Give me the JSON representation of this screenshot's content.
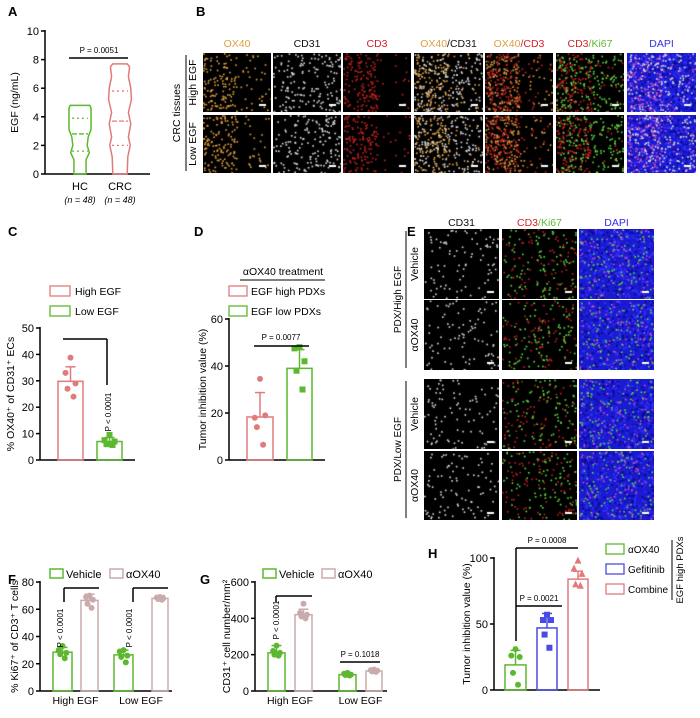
{
  "colors": {
    "red": "#e07b7b",
    "green": "#5cb82e",
    "pink": "#c9abab",
    "blue": "#4a4ae6",
    "orange": "#e0a040",
    "axis": "#000000"
  },
  "panels": {
    "A": "A",
    "B": "B",
    "C": "C",
    "D": "D",
    "E": "E",
    "F": "F",
    "G": "G",
    "H": "H"
  },
  "panelB": {
    "columns": [
      {
        "parts": [
          {
            "text": "OX40",
            "color": "#e0a040"
          }
        ]
      },
      {
        "parts": [
          {
            "text": "CD31",
            "color": "#111111"
          }
        ]
      },
      {
        "parts": [
          {
            "text": "CD3",
            "color": "#d8202a"
          }
        ]
      },
      {
        "parts": [
          {
            "text": "OX40",
            "color": "#e0a040"
          },
          {
            "text": "/CD31",
            "color": "#111111"
          }
        ]
      },
      {
        "parts": [
          {
            "text": "OX40",
            "color": "#e0a040"
          },
          {
            "text": "/CD3",
            "color": "#d8202a"
          }
        ]
      },
      {
        "parts": [
          {
            "text": "CD3",
            "color": "#d8202a"
          },
          {
            "text": "/Ki67",
            "color": "#5cb82e"
          }
        ]
      },
      {
        "parts": [
          {
            "text": "DAPI",
            "color": "#3030e0"
          }
        ]
      }
    ],
    "group_label": "CRC tissues",
    "rows": [
      "High EGF",
      "Low EGF"
    ]
  },
  "panelE": {
    "columns": [
      {
        "parts": [
          {
            "text": "CD31",
            "color": "#111111"
          }
        ]
      },
      {
        "parts": [
          {
            "text": "CD3",
            "color": "#d8202a"
          },
          {
            "text": "/Ki67",
            "color": "#5cb82e"
          }
        ]
      },
      {
        "parts": [
          {
            "text": "DAPI",
            "color": "#3030e0"
          }
        ]
      }
    ],
    "groups": [
      {
        "label": "PDX/High EGF",
        "rows": [
          "Vehicle",
          "αOX40"
        ]
      },
      {
        "label": "PDX/Low EGF",
        "rows": [
          "Vehicle",
          "αOX40"
        ]
      }
    ]
  },
  "chart_data": [
    {
      "panel": "A",
      "type": "violin",
      "ylabel": "EGF (ng/mL)",
      "ylim": [
        0,
        10
      ],
      "yticks": [
        0,
        2,
        4,
        6,
        8,
        10
      ],
      "categories": [
        "HC",
        "CRC"
      ],
      "n_labels": [
        "(n = 48)",
        "(n = 48)"
      ],
      "series": [
        {
          "category": "HC",
          "color": "#5cb82e",
          "min": 0,
          "max": 4.8,
          "q1": 1.6,
          "median": 2.8,
          "q3": 3.9
        },
        {
          "category": "CRC",
          "color": "#e07b7b",
          "min": 0,
          "max": 7.7,
          "q1": 2.0,
          "median": 3.7,
          "q3": 5.8
        }
      ],
      "annotations": [
        {
          "text": "P = 0.0051",
          "between": [
            "HC",
            "CRC"
          ]
        }
      ]
    },
    {
      "panel": "C",
      "type": "bar",
      "ylabel": "% OX40⁺ of CD31⁺ ECs",
      "ylim": [
        0,
        50
      ],
      "yticks": [
        0,
        10,
        20,
        30,
        40,
        50
      ],
      "legend": [
        {
          "name": "High EGF",
          "color": "#e07b7b"
        },
        {
          "name": "Low EGF",
          "color": "#5cb82e"
        }
      ],
      "series": [
        {
          "name": "High EGF",
          "color": "#e07b7b",
          "value": 29.8,
          "error": 35.3,
          "points": [
            38.8,
            33,
            29,
            27,
            24
          ],
          "marker": "circle"
        },
        {
          "name": "Low EGF",
          "color": "#5cb82e",
          "value": 7,
          "error": 8.5,
          "points": [
            9.5,
            7.5,
            7,
            6,
            5.7
          ],
          "marker": "square"
        }
      ],
      "annotations": [
        {
          "text": "P < 0.0001"
        }
      ]
    },
    {
      "panel": "D",
      "type": "bar",
      "ylabel": "Tumor inhibition value (%)",
      "ylim": [
        0,
        60
      ],
      "yticks": [
        0,
        20,
        40,
        60
      ],
      "legend_title": "αOX40 treatment",
      "legend": [
        {
          "name": "EGF high PDXs",
          "color": "#e07b7b"
        },
        {
          "name": "EGF low PDXs",
          "color": "#5cb82e"
        }
      ],
      "series": [
        {
          "name": "EGF high PDXs",
          "color": "#e07b7b",
          "value": 18.3,
          "error": 28.7,
          "points": [
            34.5,
            18,
            19,
            14,
            6.5
          ],
          "marker": "circle"
        },
        {
          "name": "EGF low PDXs",
          "color": "#5cb82e",
          "value": 39,
          "error": 47,
          "points": [
            48,
            47.5,
            42,
            38,
            30
          ],
          "marker": "square"
        }
      ],
      "annotations": [
        {
          "text": "P = 0.0077"
        }
      ]
    },
    {
      "panel": "F",
      "type": "grouped-bar",
      "ylabel": "% Ki67⁺ of CD3⁺ T cells",
      "ylim": [
        0,
        80
      ],
      "yticks": [
        0,
        20,
        40,
        60,
        80
      ],
      "categories": [
        "High EGF",
        "Low EGF"
      ],
      "legend": [
        {
          "name": "Vehicle",
          "color": "#5cb82e"
        },
        {
          "name": "αOX40",
          "color": "#c9abab"
        }
      ],
      "series": [
        {
          "name": "Vehicle",
          "color": "#5cb82e",
          "values": [
            28.5,
            26.5
          ],
          "errors": [
            32,
            30
          ],
          "points": [
            [
              33,
              30,
              28,
              27,
              24
            ],
            [
              30,
              29,
              26,
              25,
              21
            ]
          ]
        },
        {
          "name": "αOX40",
          "color": "#c9abab",
          "values": [
            66.5,
            68
          ],
          "errors": [
            71,
            70
          ],
          "points": [
            [
              70,
              69,
              67,
              64,
              61
            ],
            [
              69,
              68.5,
              68,
              67.5,
              67
            ]
          ]
        }
      ],
      "annotations": [
        {
          "text": "P < 0.0001",
          "category": "High EGF"
        },
        {
          "text": "P < 0.0001",
          "category": "Low EGF"
        }
      ]
    },
    {
      "panel": "G",
      "type": "grouped-bar",
      "ylabel": "CD31⁺ cell number/mm²",
      "ylim": [
        0,
        600
      ],
      "yticks": [
        0,
        200,
        400,
        600
      ],
      "categories": [
        "High EGF",
        "Low EGF"
      ],
      "legend": [
        {
          "name": "Vehicle",
          "color": "#5cb82e"
        },
        {
          "name": "αOX40",
          "color": "#c9abab"
        }
      ],
      "series": [
        {
          "name": "Vehicle",
          "color": "#5cb82e",
          "values": [
            210,
            90
          ],
          "errors": [
            250,
            100
          ],
          "points": [
            [
              250,
              220,
              210,
              200,
              195
            ],
            [
              100,
              95,
              90,
              88,
              85
            ]
          ]
        },
        {
          "name": "αOX40",
          "color": "#c9abab",
          "values": [
            420,
            110
          ],
          "errors": [
            450,
            120
          ],
          "points": [
            [
              480,
              430,
              420,
              410,
              400
            ],
            [
              118,
              115,
              112,
              108,
              105
            ]
          ]
        }
      ],
      "annotations": [
        {
          "text": "P < 0.0001",
          "category": "High EGF"
        },
        {
          "text": "P = 0.1018",
          "category": "Low EGF"
        }
      ]
    },
    {
      "panel": "H",
      "type": "bar",
      "ylabel": "Tumor inhibition value (%)",
      "ylim": [
        0,
        100
      ],
      "yticks": [
        0,
        50,
        100
      ],
      "legend_group": "EGF high PDXs",
      "legend": [
        {
          "name": "αOX40",
          "color": "#5cb82e"
        },
        {
          "name": "Gefitinib",
          "color": "#4a4ae6"
        },
        {
          "name": "Combine",
          "color": "#e07b7b"
        }
      ],
      "series": [
        {
          "name": "αOX40",
          "color": "#5cb82e",
          "value": 19,
          "error": 30,
          "points": [
            31,
            26,
            25,
            13,
            4
          ],
          "marker": "circle"
        },
        {
          "name": "Gefitinib",
          "color": "#4a4ae6",
          "value": 47,
          "error": 58,
          "points": [
            57,
            53,
            53,
            42,
            32
          ],
          "marker": "square"
        },
        {
          "name": "Combine",
          "color": "#e07b7b",
          "value": 84,
          "error": 90,
          "points": [
            98,
            92,
            88,
            80,
            79
          ],
          "marker": "triangle"
        }
      ],
      "annotations": [
        {
          "text": "P = 0.0021",
          "between": [
            "αOX40",
            "Gefitinib"
          ]
        },
        {
          "text": "P = 0.0008",
          "between": [
            "αOX40",
            "Combine"
          ]
        }
      ]
    }
  ]
}
